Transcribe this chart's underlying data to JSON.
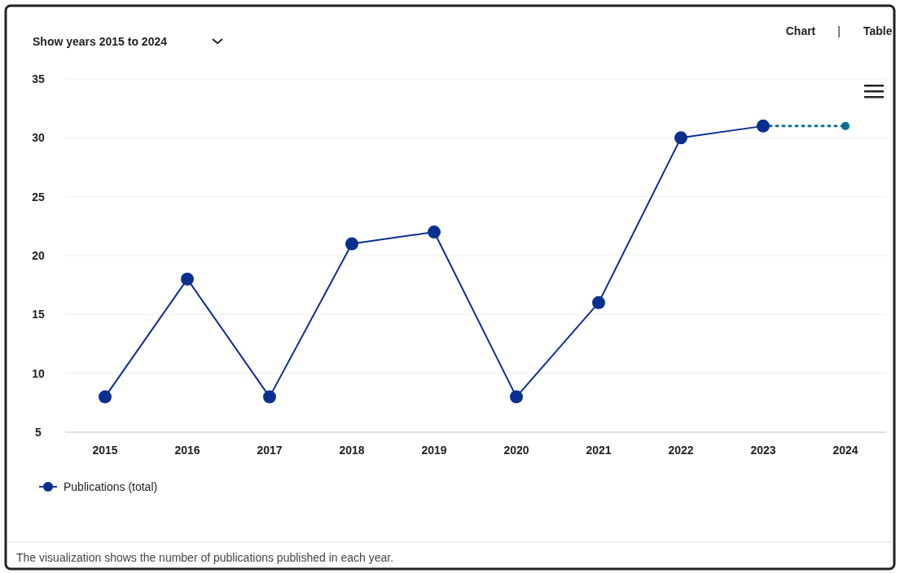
{
  "chart_data": {
    "type": "line",
    "categories": [
      "2015",
      "2016",
      "2017",
      "2018",
      "2019",
      "2020",
      "2021",
      "2022",
      "2023",
      "2024"
    ],
    "series": [
      {
        "name": "Publications (total)",
        "color": "#0a2f8f",
        "values": [
          8,
          18,
          8,
          21,
          22,
          8,
          16,
          30,
          31,
          null
        ]
      },
      {
        "color": "#0a6e8f",
        "values": [
          null,
          null,
          null,
          null,
          null,
          null,
          null,
          null,
          31,
          31
        ],
        "line_style": "dotted"
      }
    ],
    "ylim": [
      5,
      35
    ],
    "yticks": [
      5,
      10,
      15,
      20,
      25,
      30,
      35
    ],
    "grid": "y",
    "marker": "circle",
    "line_style": "solid",
    "legend": "bottom left",
    "annotations": [
      "Show years 2015 to 2024",
      "Chart",
      "|",
      "Table",
      "The visualization shows the number of publications published in each year."
    ]
  }
}
